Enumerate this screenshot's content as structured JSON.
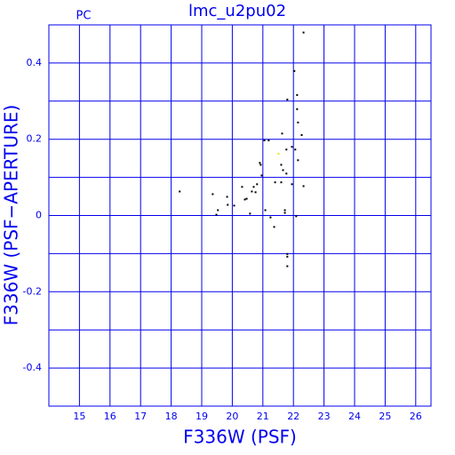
{
  "chart_data": {
    "type": "scatter",
    "title": "lmc_u2pu02",
    "corner_label": "PC",
    "x_label": "F336W (PSF)",
    "y_label": "F336W (PSF−APERTURE)",
    "xlim": [
      14,
      26.5
    ],
    "ylim": [
      -0.5,
      0.5
    ],
    "xticks": [
      15,
      16,
      17,
      18,
      19,
      20,
      21,
      22,
      23,
      24,
      25,
      26
    ],
    "yticks": [
      -0.4,
      -0.2,
      0,
      0.2,
      0.4
    ],
    "minor_yticks": [
      -0.3,
      -0.1,
      0.1,
      0.3
    ],
    "grid": true,
    "color": "#0000ee",
    "series": [
      {
        "color": "#000000",
        "x": [
          18.28,
          19.36,
          19.48,
          19.53,
          19.83,
          19.85,
          20.06,
          20.32,
          20.41,
          20.47,
          20.58,
          20.64,
          20.7,
          20.76,
          20.81,
          20.9,
          20.93,
          20.96,
          21.05,
          21.19,
          21.08,
          21.25,
          21.4,
          21.37,
          21.6,
          21.63,
          21.6,
          21.66,
          21.72,
          21.72,
          21.8,
          21.77,
          21.77,
          21.8,
          21.8,
          21.8,
          21.95,
          21.95,
          22.03,
          22.06,
          22.12,
          22.12,
          22.15,
          22.15,
          22.09,
          22.27,
          22.33,
          22.33
        ],
        "values": [
          0.063,
          0.056,
          0.002,
          0.014,
          0.049,
          0.028,
          0.026,
          0.075,
          0.042,
          0.044,
          0.005,
          0.063,
          0.075,
          0.061,
          0.082,
          0.138,
          0.133,
          0.105,
          0.197,
          0.197,
          0.014,
          -0.005,
          0.087,
          -0.03,
          0.087,
          0.215,
          0.133,
          0.119,
          0.014,
          0.007,
          0.304,
          0.173,
          0.11,
          -0.101,
          -0.108,
          -0.133,
          0.18,
          0.082,
          0.379,
          0.173,
          0.316,
          0.279,
          0.244,
          0.145,
          -0.002,
          0.211,
          0.48,
          0.077
        ]
      },
      {
        "color": "#e8e800",
        "x": [
          21.51
        ],
        "values": [
          0.162
        ]
      }
    ]
  }
}
